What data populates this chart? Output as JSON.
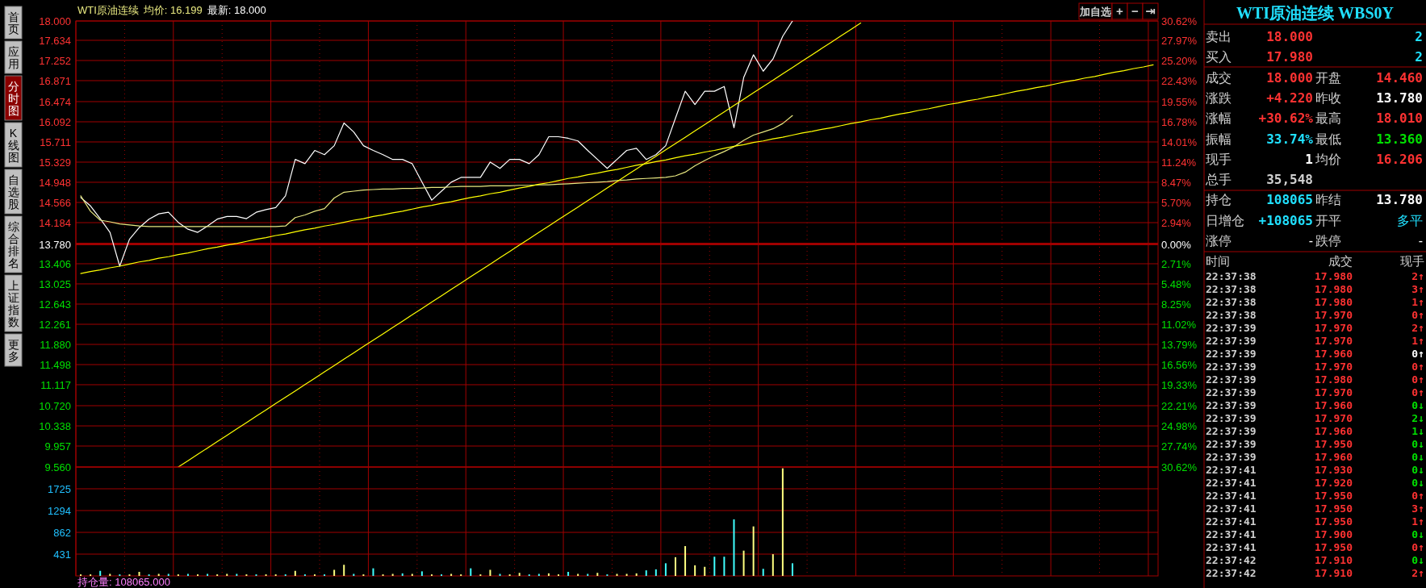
{
  "chart_data": [
    {
      "type": "line",
      "title": "WTI原油连续",
      "annotations": [
        "均价: 16.199",
        "最新: 18.000"
      ],
      "categories": [
        null,
        null,
        null,
        null,
        null,
        null,
        null,
        null,
        null,
        null,
        null,
        null,
        null,
        null,
        null,
        null,
        null,
        null,
        null,
        null,
        null,
        null,
        null,
        null,
        null,
        null,
        null,
        null,
        null,
        null,
        null,
        null,
        null,
        null,
        null,
        null,
        null,
        null,
        null,
        null,
        null,
        null,
        null,
        null,
        null,
        null,
        null,
        null,
        null,
        null,
        null,
        null,
        null,
        null,
        null,
        null,
        null,
        null,
        null,
        null,
        null,
        null,
        null,
        null,
        null,
        null,
        null,
        null,
        null,
        null,
        null,
        null,
        null,
        null,
        null,
        null,
        null,
        null,
        null,
        null,
        null,
        null,
        null,
        null,
        null,
        null,
        null,
        null,
        null,
        null,
        null,
        null,
        null,
        null,
        null,
        null,
        null,
        null,
        null,
        null,
        null,
        null,
        null,
        null,
        null,
        null,
        null,
        null,
        null,
        null,
        null
      ],
      "ylim": [
        9.56,
        18
      ],
      "yticks": [
        {
          "value": 18,
          "label": "18.000"
        },
        {
          "value": 17.634,
          "label": "17.634"
        },
        {
          "value": 17.252,
          "label": "17.252"
        },
        {
          "value": 16.871,
          "label": "16.871"
        },
        {
          "value": 16.474,
          "label": "16.474"
        },
        {
          "value": 16.092,
          "label": "16.092"
        },
        {
          "value": 15.711,
          "label": "15.711"
        },
        {
          "value": 15.329,
          "label": "15.329"
        },
        {
          "value": 14.948,
          "label": "14.948"
        },
        {
          "value": 14.566,
          "label": "14.566"
        },
        {
          "value": 14.184,
          "label": "14.184"
        },
        {
          "value": 13.78,
          "label": "13.780"
        },
        {
          "value": 13.406,
          "label": "13.406"
        },
        {
          "value": 13.025,
          "label": "13.025"
        },
        {
          "value": 12.643,
          "label": "12.643"
        },
        {
          "value": 12.261,
          "label": "12.261"
        },
        {
          "value": 11.88,
          "label": "11.880"
        },
        {
          "value": 11.498,
          "label": "11.498"
        },
        {
          "value": 11.117,
          "label": "11.117"
        },
        {
          "value": 10.72,
          "label": "10.720"
        },
        {
          "value": 10.338,
          "label": "10.338"
        },
        {
          "value": 9.957,
          "label": "9.957"
        },
        {
          "value": 9.56,
          "label": "9.560"
        }
      ],
      "y2lim": [
        -30.62,
        30.62
      ],
      "y2ticks": [
        {
          "value": 30.62,
          "label": "30.62%"
        },
        {
          "value": 27.97,
          "label": "27.97%"
        },
        {
          "value": 25.2,
          "label": "25.20%"
        },
        {
          "value": 22.43,
          "label": "22.43%"
        },
        {
          "value": 19.55,
          "label": "19.55%"
        },
        {
          "value": 16.78,
          "label": "16.78%"
        },
        {
          "value": 14.01,
          "label": "14.01%"
        },
        {
          "value": 11.24,
          "label": "11.24%"
        },
        {
          "value": 8.47,
          "label": "8.47%"
        },
        {
          "value": 5.7,
          "label": "5.70%"
        },
        {
          "value": 2.94,
          "label": "2.94%"
        },
        {
          "value": 0,
          "label": "0.00%"
        },
        {
          "value": -2.71,
          "label": "2.71%"
        },
        {
          "value": -5.48,
          "label": "5.48%"
        },
        {
          "value": -8.25,
          "label": "8.25%"
        },
        {
          "value": -11.02,
          "label": "11.02%"
        },
        {
          "value": -13.79,
          "label": "13.79%"
        },
        {
          "value": -16.56,
          "label": "16.56%"
        },
        {
          "value": -19.33,
          "label": "19.33%"
        },
        {
          "value": -22.21,
          "label": "22.21%"
        },
        {
          "value": -24.98,
          "label": "24.98%"
        },
        {
          "value": -27.74,
          "label": "27.74%"
        },
        {
          "value": -30.62,
          "label": "30.62%"
        }
      ],
      "grid": true,
      "tick_labels": "y",
      "ref_lines": [
        {
          "axis": "y",
          "value": 13.78,
          "color": "#a00000"
        }
      ],
      "series": [
        {
          "color": "#ffffff",
          "values": [
            14.66,
            14.5,
            14.26,
            14.0,
            13.36,
            13.87,
            14.09,
            14.25,
            14.35,
            14.38,
            14.19,
            14.06,
            14.0,
            14.12,
            14.25,
            14.3,
            14.3,
            14.26,
            14.38,
            14.43,
            14.47,
            14.69,
            15.38,
            15.3,
            15.55,
            15.47,
            15.64,
            16.07,
            15.9,
            15.64,
            15.55,
            15.47,
            15.38,
            15.38,
            15.3,
            14.95,
            14.61,
            14.78,
            14.95,
            15.04,
            15.04,
            15.04,
            15.33,
            15.21,
            15.38,
            15.38,
            15.3,
            15.47,
            15.81,
            15.81,
            15.78,
            15.73,
            15.55,
            15.38,
            15.21,
            15.38,
            15.55,
            15.59,
            15.38,
            15.47,
            15.64,
            16.16,
            16.67,
            16.42,
            16.67,
            16.67,
            16.76,
            15.98,
            16.93,
            17.36,
            17.05,
            17.28,
            17.71,
            18.0,
            null,
            null,
            null,
            null,
            null,
            null,
            null,
            null,
            null,
            null,
            null,
            null,
            null,
            null,
            null,
            null,
            null,
            null,
            null,
            null,
            null,
            null,
            null,
            null,
            null,
            null,
            null,
            null,
            null,
            null,
            null,
            null,
            null,
            null,
            null,
            null,
            null
          ]
        },
        {
          "color": "#e8e880",
          "values": [
            14.69,
            14.4,
            14.23,
            14.2,
            14.16,
            14.14,
            14.12,
            14.11,
            14.11,
            14.11,
            14.11,
            14.11,
            14.11,
            14.11,
            14.11,
            14.11,
            14.11,
            14.11,
            14.11,
            14.11,
            14.11,
            14.12,
            14.28,
            14.33,
            14.4,
            14.45,
            14.65,
            14.76,
            14.78,
            14.8,
            14.81,
            14.82,
            14.82,
            14.83,
            14.83,
            14.84,
            14.85,
            14.85,
            14.86,
            14.87,
            14.87,
            14.87,
            14.88,
            14.88,
            14.88,
            14.89,
            14.89,
            14.9,
            14.9,
            14.91,
            14.92,
            14.93,
            14.94,
            14.95,
            14.96,
            14.98,
            14.99,
            15.01,
            15.02,
            15.03,
            15.04,
            15.07,
            15.14,
            15.26,
            15.36,
            15.45,
            15.53,
            15.62,
            15.74,
            15.84,
            15.9,
            15.96,
            16.06,
            16.21,
            null,
            null,
            null,
            null,
            null,
            null,
            null,
            null,
            null,
            null,
            null,
            null,
            null,
            null,
            null,
            null,
            null,
            null,
            null,
            null,
            null,
            null,
            null,
            null,
            null,
            null,
            null,
            null,
            null,
            null,
            null,
            null,
            null,
            null,
            null,
            null,
            null
          ]
        },
        {
          "color": "#ffff00",
          "values": [
            13.22,
            13.26,
            13.29,
            13.33,
            13.36,
            13.4,
            13.44,
            13.47,
            13.51,
            13.54,
            13.58,
            13.61,
            13.65,
            13.69,
            13.72,
            13.76,
            13.79,
            13.83,
            13.87,
            13.9,
            13.94,
            13.97,
            14.01,
            14.05,
            14.08,
            14.12,
            14.15,
            14.19,
            14.23,
            14.26,
            14.3,
            14.33,
            14.37,
            14.4,
            14.44,
            14.48,
            14.51,
            14.55,
            14.58,
            14.62,
            14.66,
            14.69,
            14.73,
            14.76,
            14.8,
            14.84,
            14.87,
            14.91,
            14.94,
            14.98,
            15.02,
            15.05,
            15.09,
            15.12,
            15.16,
            15.19,
            15.23,
            15.27,
            15.3,
            15.34,
            15.37,
            15.41,
            15.45,
            15.48,
            15.52,
            15.55,
            15.59,
            15.63,
            15.66,
            15.7,
            15.73,
            15.77,
            15.8,
            15.84,
            15.88,
            15.91,
            15.95,
            15.98,
            16.02,
            16.06,
            16.09,
            16.13,
            16.16,
            16.2,
            16.24,
            16.27,
            16.31,
            16.34,
            16.38,
            16.42,
            16.45,
            16.49,
            16.52,
            16.56,
            16.59,
            16.63,
            16.67,
            16.7,
            16.74,
            16.77,
            16.81,
            16.85,
            16.88,
            16.92,
            16.95,
            16.99,
            17.03,
            17.06,
            17.1,
            17.13,
            17.17
          ]
        },
        {
          "color": "#ffff00",
          "values": [
            null,
            null,
            null,
            null,
            null,
            null,
            null,
            null,
            null,
            null,
            9.56,
            9.68,
            9.8,
            9.92,
            10.04,
            10.16,
            10.28,
            10.4,
            10.52,
            10.64,
            10.76,
            10.88,
            11.0,
            11.12,
            11.24,
            11.36,
            11.48,
            11.6,
            11.72,
            11.84,
            11.96,
            12.08,
            12.2,
            12.32,
            12.44,
            12.56,
            12.68,
            12.8,
            12.92,
            13.04,
            13.16,
            13.28,
            13.4,
            13.52,
            13.64,
            13.76,
            13.88,
            14.0,
            14.12,
            14.24,
            14.36,
            14.48,
            14.6,
            14.72,
            14.84,
            14.96,
            15.08,
            15.2,
            15.32,
            15.44,
            15.56,
            15.68,
            15.8,
            15.92,
            16.04,
            16.16,
            16.28,
            16.4,
            16.52,
            16.64,
            16.76,
            16.88,
            17.0,
            17.12,
            17.24,
            17.36,
            17.48,
            17.6,
            17.72,
            17.84,
            17.96,
            null,
            null,
            null,
            null,
            null,
            null,
            null,
            null,
            null,
            null,
            null,
            null,
            null,
            null,
            null,
            null,
            null,
            null,
            null,
            null,
            null,
            null,
            null,
            null,
            null,
            null,
            null,
            null,
            null,
            null
          ]
        }
      ]
    },
    {
      "type": "bar",
      "annotations": [
        "持仓量: 108065.000"
      ],
      "categories": [
        null,
        null,
        null,
        null,
        null,
        null,
        null,
        null,
        null,
        null,
        null,
        null,
        null,
        null,
        null,
        null,
        null,
        null,
        null,
        null,
        null,
        null,
        null,
        null,
        null,
        null,
        null,
        null,
        null,
        null,
        null,
        null,
        null,
        null,
        null,
        null,
        null,
        null,
        null,
        null,
        null,
        null,
        null,
        null,
        null,
        null,
        null,
        null,
        null,
        null,
        null,
        null,
        null,
        null,
        null,
        null,
        null,
        null,
        null,
        null,
        null,
        null,
        null,
        null,
        null,
        null,
        null,
        null,
        null,
        null,
        null,
        null,
        null,
        null,
        null,
        null,
        null,
        null,
        null,
        null,
        null,
        null,
        null,
        null,
        null,
        null,
        null,
        null,
        null,
        null,
        null,
        null,
        null,
        null,
        null,
        null,
        null,
        null,
        null,
        null,
        null,
        null,
        null,
        null,
        null,
        null,
        null,
        null,
        null,
        null,
        null
      ],
      "ylim": [
        0,
        2156
      ],
      "yticks": [
        431,
        862,
        1294,
        1725
      ],
      "grid": true,
      "tick_labels": "y",
      "values": [
        30,
        30,
        100,
        40,
        30,
        30,
        80,
        30,
        40,
        40,
        30,
        40,
        30,
        40,
        30,
        40,
        40,
        30,
        30,
        30,
        30,
        30,
        100,
        30,
        30,
        30,
        120,
        220,
        40,
        30,
        150,
        30,
        40,
        50,
        40,
        90,
        30,
        30,
        40,
        30,
        150,
        30,
        120,
        40,
        30,
        60,
        30,
        40,
        50,
        30,
        80,
        40,
        40,
        60,
        30,
        40,
        40,
        50,
        110,
        130,
        250,
        370,
        590,
        210,
        180,
        380,
        380,
        1120,
        500,
        980,
        140,
        430,
        2130,
        250,
        null,
        null,
        null,
        null,
        null,
        null,
        null,
        null,
        null,
        null,
        null,
        null,
        null,
        null,
        null,
        null,
        null,
        null,
        null,
        null,
        null,
        null,
        null,
        null,
        null,
        null,
        null,
        null,
        null,
        null,
        null,
        null,
        null,
        null,
        null,
        null,
        null
      ],
      "colors": [
        "#ffff80",
        "#ffff80",
        "#40ffff",
        "#ffff80",
        "#40ffff",
        "#ffff80",
        "#ffff80",
        "#40ffff",
        "#ffff80",
        "#40ffff",
        "#ffff80",
        "#40ffff",
        "#ffff80",
        "#40ffff",
        "#ffff80",
        "#ffff80",
        "#40ffff",
        "#ffff80",
        "#40ffff",
        "#ffff80",
        "#ffff80",
        "#40ffff",
        "#ffff80",
        "#40ffff",
        "#ffff80",
        "#40ffff",
        "#ffff80",
        "#ffff80",
        "#40ffff",
        "#ffff80",
        "#40ffff",
        "#ffff80",
        "#ffff80",
        "#40ffff",
        "#ffff80",
        "#40ffff",
        "#ffff80",
        "#40ffff",
        "#ffff80",
        "#ffff80",
        "#40ffff",
        "#ffff80",
        "#ffff80",
        "#40ffff",
        "#ffff80",
        "#ffff80",
        "#40ffff",
        "#40ffff",
        "#ffff80",
        "#ffff80",
        "#40ffff",
        "#ffff80",
        "#40ffff",
        "#ffff80",
        "#40ffff",
        "#ffff80",
        "#ffff80",
        "#ffff80",
        "#40ffff",
        "#40ffff",
        "#40ffff",
        "#ffff80",
        "#ffff80",
        "#ffff80",
        "#ffff80",
        "#40ffff",
        "#40ffff",
        "#40ffff",
        "#ffff80",
        "#ffff80",
        "#40ffff",
        "#ffff80",
        "#ffff80",
        "#40ffff",
        null,
        null,
        null,
        null,
        null,
        null,
        null,
        null,
        null,
        null,
        null,
        null,
        null,
        null,
        null,
        null,
        null,
        null,
        null,
        null,
        null,
        null,
        null,
        null,
        null,
        null,
        null,
        null,
        null,
        null,
        null,
        null,
        null,
        null,
        null,
        null,
        null
      ]
    },
    {
      "type": "other",
      "title": "WTI原油连续 WBS0Y",
      "annotations": [
        "卖出",
        "18.000",
        "2",
        "买入",
        "17.980",
        "2",
        "成交",
        "18.000",
        "开盘",
        "14.460",
        "涨跌",
        "+4.220",
        "昨收",
        "13.780",
        "涨幅",
        "+30.62%",
        "最高",
        "18.010",
        "振幅",
        "33.74%",
        "最低",
        "13.360",
        "现手",
        "1",
        "均价",
        "16.206",
        "总手",
        "35,548",
        "持仓",
        "108065",
        "昨结",
        "13.780",
        "日增仓",
        "+108065",
        "开平",
        "多平",
        "涨停",
        "-",
        "跌停",
        "-",
        "时间",
        "成交",
        "现手",
        "22:37:38",
        "17.980",
        "2↑",
        "22:37:38",
        "17.980",
        "3↑",
        "22:37:38",
        "17.980",
        "1↑",
        "22:37:38",
        "17.970",
        "0↑",
        "22:37:39",
        "17.970",
        "2↑",
        "22:37:39",
        "17.970",
        "1↑",
        "22:37:39",
        "17.960",
        "0↑",
        "22:37:39",
        "17.970",
        "0↑",
        "22:37:39",
        "17.980",
        "0↑",
        "22:37:39",
        "17.970",
        "0↑",
        "22:37:39",
        "17.960",
        "0↓",
        "22:37:39",
        "17.970",
        "2↓",
        "22:37:39",
        "17.960",
        "1↓",
        "22:37:39",
        "17.950",
        "0↓",
        "22:37:39",
        "17.960",
        "0↓",
        "22:37:41",
        "17.930",
        "0↓",
        "22:37:41",
        "17.920",
        "0↓",
        "22:37:41",
        "17.950",
        "0↑",
        "22:37:41",
        "17.950",
        "3↑",
        "22:37:41",
        "17.950",
        "1↑",
        "22:37:41",
        "17.900",
        "0↓",
        "22:37:41",
        "17.950",
        "0↑",
        "22:37:42",
        "17.910",
        "0↓",
        "22:37:42",
        "17.910",
        "2↑"
      ],
      "colors": [
        "#d0d0d0",
        "#ff3232",
        "#20e0ff",
        "#d0d0d0",
        "#ff3232",
        "#20e0ff",
        "#d0d0d0",
        "#ff3232",
        "#d0d0d0",
        "#ff3232",
        "#d0d0d0",
        "#ff3232",
        "#d0d0d0",
        "#ffffff",
        "#d0d0d0",
        "#ff3232",
        "#d0d0d0",
        "#ff3232",
        "#d0d0d0",
        "#20e0ff",
        "#d0d0d0",
        "#00e000",
        "#d0d0d0",
        "#ffffff",
        "#d0d0d0",
        "#ff3232",
        "#d0d0d0",
        "#d0d0d0",
        "#d0d0d0",
        "#20e0ff",
        "#d0d0d0",
        "#ffffff",
        "#d0d0d0",
        "#20e0ff",
        "#d0d0d0",
        "#20e0ff",
        "#d0d0d0",
        "#ffffff",
        "#d0d0d0",
        "#ffffff",
        "#d0d0d0",
        "#d0d0d0",
        "#d0d0d0",
        "#d0d0d0",
        "#ff3232",
        "#ff3232",
        "#d0d0d0",
        "#ff3232",
        "#ff3232",
        "#d0d0d0",
        "#ff3232",
        "#ff3232",
        "#d0d0d0",
        "#ff3232",
        "#ff3232",
        "#d0d0d0",
        "#ff3232",
        "#ff3232",
        "#d0d0d0",
        "#ff3232",
        "#ff3232",
        "#d0d0d0",
        "#ff3232",
        "#ffffff",
        "#d0d0d0",
        "#ff3232",
        "#ff3232",
        "#d0d0d0",
        "#ff3232",
        "#ff3232",
        "#d0d0d0",
        "#ff3232",
        "#ff3232",
        "#d0d0d0",
        "#ff3232",
        "#00e000",
        "#d0d0d0",
        "#ff3232",
        "#00e000",
        "#d0d0d0",
        "#ff3232",
        "#00e000",
        "#d0d0d0",
        "#ff3232",
        "#00e000",
        "#d0d0d0",
        "#ff3232",
        "#00e000",
        "#d0d0d0",
        "#ff3232",
        "#00e000",
        "#d0d0d0",
        "#ff3232",
        "#00e000",
        "#d0d0d0",
        "#ff3232",
        "#ff3232",
        "#d0d0d0",
        "#ff3232",
        "#ff3232",
        "#d0d0d0",
        "#ff3232",
        "#ff3232",
        "#d0d0d0",
        "#ff3232",
        "#00e000",
        "#d0d0d0",
        "#ff3232",
        "#ff3232",
        "#d0d0d0",
        "#ff3232",
        "#00e000",
        "#d0d0d0",
        "#ff3232",
        "#ff3232"
      ]
    },
    {
      "type": "other",
      "annotations": [
        "首页",
        "应用",
        "分时图",
        "K线图",
        "自选股",
        "综合排名",
        "上证指数",
        "更多",
        "加自选",
        "+",
        "−",
        "⇥"
      ]
    }
  ]
}
